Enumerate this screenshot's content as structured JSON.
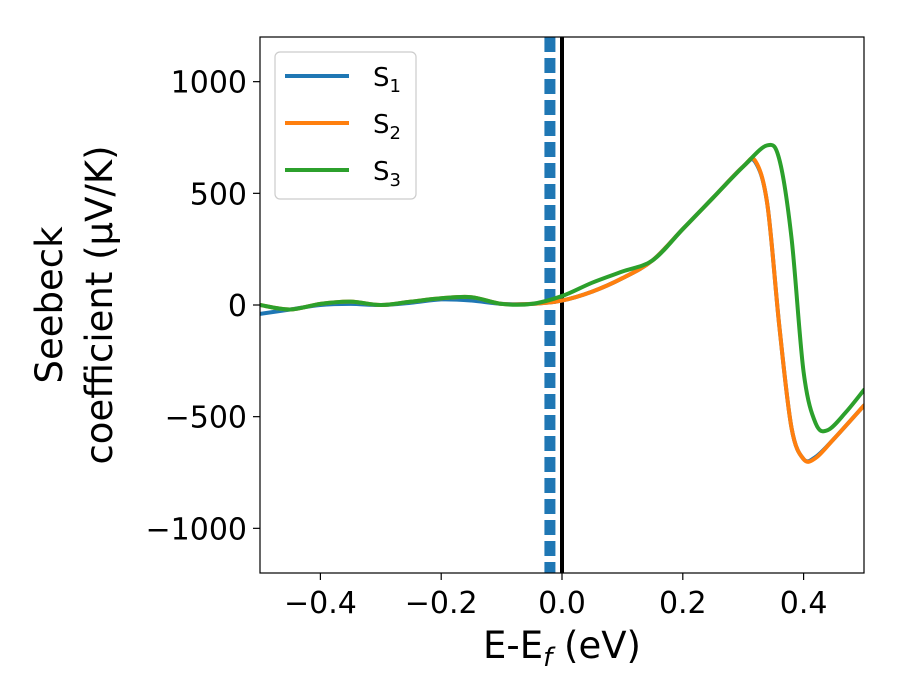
{
  "chart_data": {
    "type": "line",
    "title": "",
    "xlabel": "E-E",
    "xlabel_subscript": "f",
    "xlabel_unit": " (eV)",
    "ylabel_line1": "Seebeck",
    "ylabel_line2": "coefficient  (μV/K)",
    "xlim": [
      -0.5,
      0.5
    ],
    "ylim": [
      -1200,
      1200
    ],
    "xticks": [
      -0.4,
      -0.2,
      0.0,
      0.2,
      0.4
    ],
    "xtick_labels": [
      "−0.4",
      "−0.2",
      "0.0",
      "0.2",
      "0.4"
    ],
    "yticks": [
      -1000,
      -500,
      0,
      500,
      1000
    ],
    "ytick_labels": [
      "−1000",
      "−500",
      "0",
      "500",
      "1000"
    ],
    "grid": false,
    "legend_position": "top-left",
    "vlines": [
      {
        "x": -0.02,
        "style": "dashed",
        "color": "#1f77b4"
      },
      {
        "x": 0.0,
        "style": "solid",
        "color": "#000000"
      }
    ],
    "series": [
      {
        "name": "S",
        "subscript": "1",
        "color": "#1f77b4",
        "x": [
          -0.5,
          -0.45,
          -0.4,
          -0.35,
          -0.3,
          -0.25,
          -0.2,
          -0.15,
          -0.1,
          -0.05,
          0.0,
          0.05,
          0.1,
          0.15,
          0.2,
          0.25,
          0.3,
          0.32,
          0.34,
          0.36,
          0.38,
          0.4,
          0.42,
          0.45,
          0.5
        ],
        "y": [
          -40,
          -20,
          0,
          5,
          0,
          10,
          25,
          20,
          5,
          5,
          20,
          60,
          120,
          200,
          340,
          480,
          620,
          640,
          450,
          -100,
          -550,
          -690,
          -680,
          -600,
          -450
        ]
      },
      {
        "name": "S",
        "subscript": "2",
        "color": "#ff7f0e",
        "x": [
          -0.5,
          -0.45,
          -0.4,
          -0.35,
          -0.3,
          -0.25,
          -0.2,
          -0.15,
          -0.1,
          -0.05,
          0.0,
          0.05,
          0.1,
          0.15,
          0.2,
          0.25,
          0.3,
          0.32,
          0.34,
          0.36,
          0.38,
          0.4,
          0.42,
          0.45,
          0.5
        ],
        "y": [
          0,
          -20,
          5,
          15,
          0,
          15,
          30,
          35,
          5,
          5,
          20,
          60,
          120,
          200,
          340,
          480,
          620,
          645,
          450,
          -100,
          -550,
          -690,
          -685,
          -600,
          -450
        ]
      },
      {
        "name": "S",
        "subscript": "3",
        "color": "#2ca02c",
        "x": [
          -0.5,
          -0.45,
          -0.4,
          -0.35,
          -0.3,
          -0.25,
          -0.2,
          -0.15,
          -0.1,
          -0.05,
          0.0,
          0.05,
          0.1,
          0.15,
          0.2,
          0.25,
          0.3,
          0.34,
          0.36,
          0.38,
          0.4,
          0.42,
          0.44,
          0.47,
          0.5
        ],
        "y": [
          0,
          -20,
          5,
          15,
          0,
          15,
          30,
          35,
          5,
          5,
          40,
          100,
          150,
          200,
          340,
          480,
          620,
          715,
          650,
          300,
          -300,
          -530,
          -560,
          -480,
          -380
        ]
      }
    ]
  }
}
